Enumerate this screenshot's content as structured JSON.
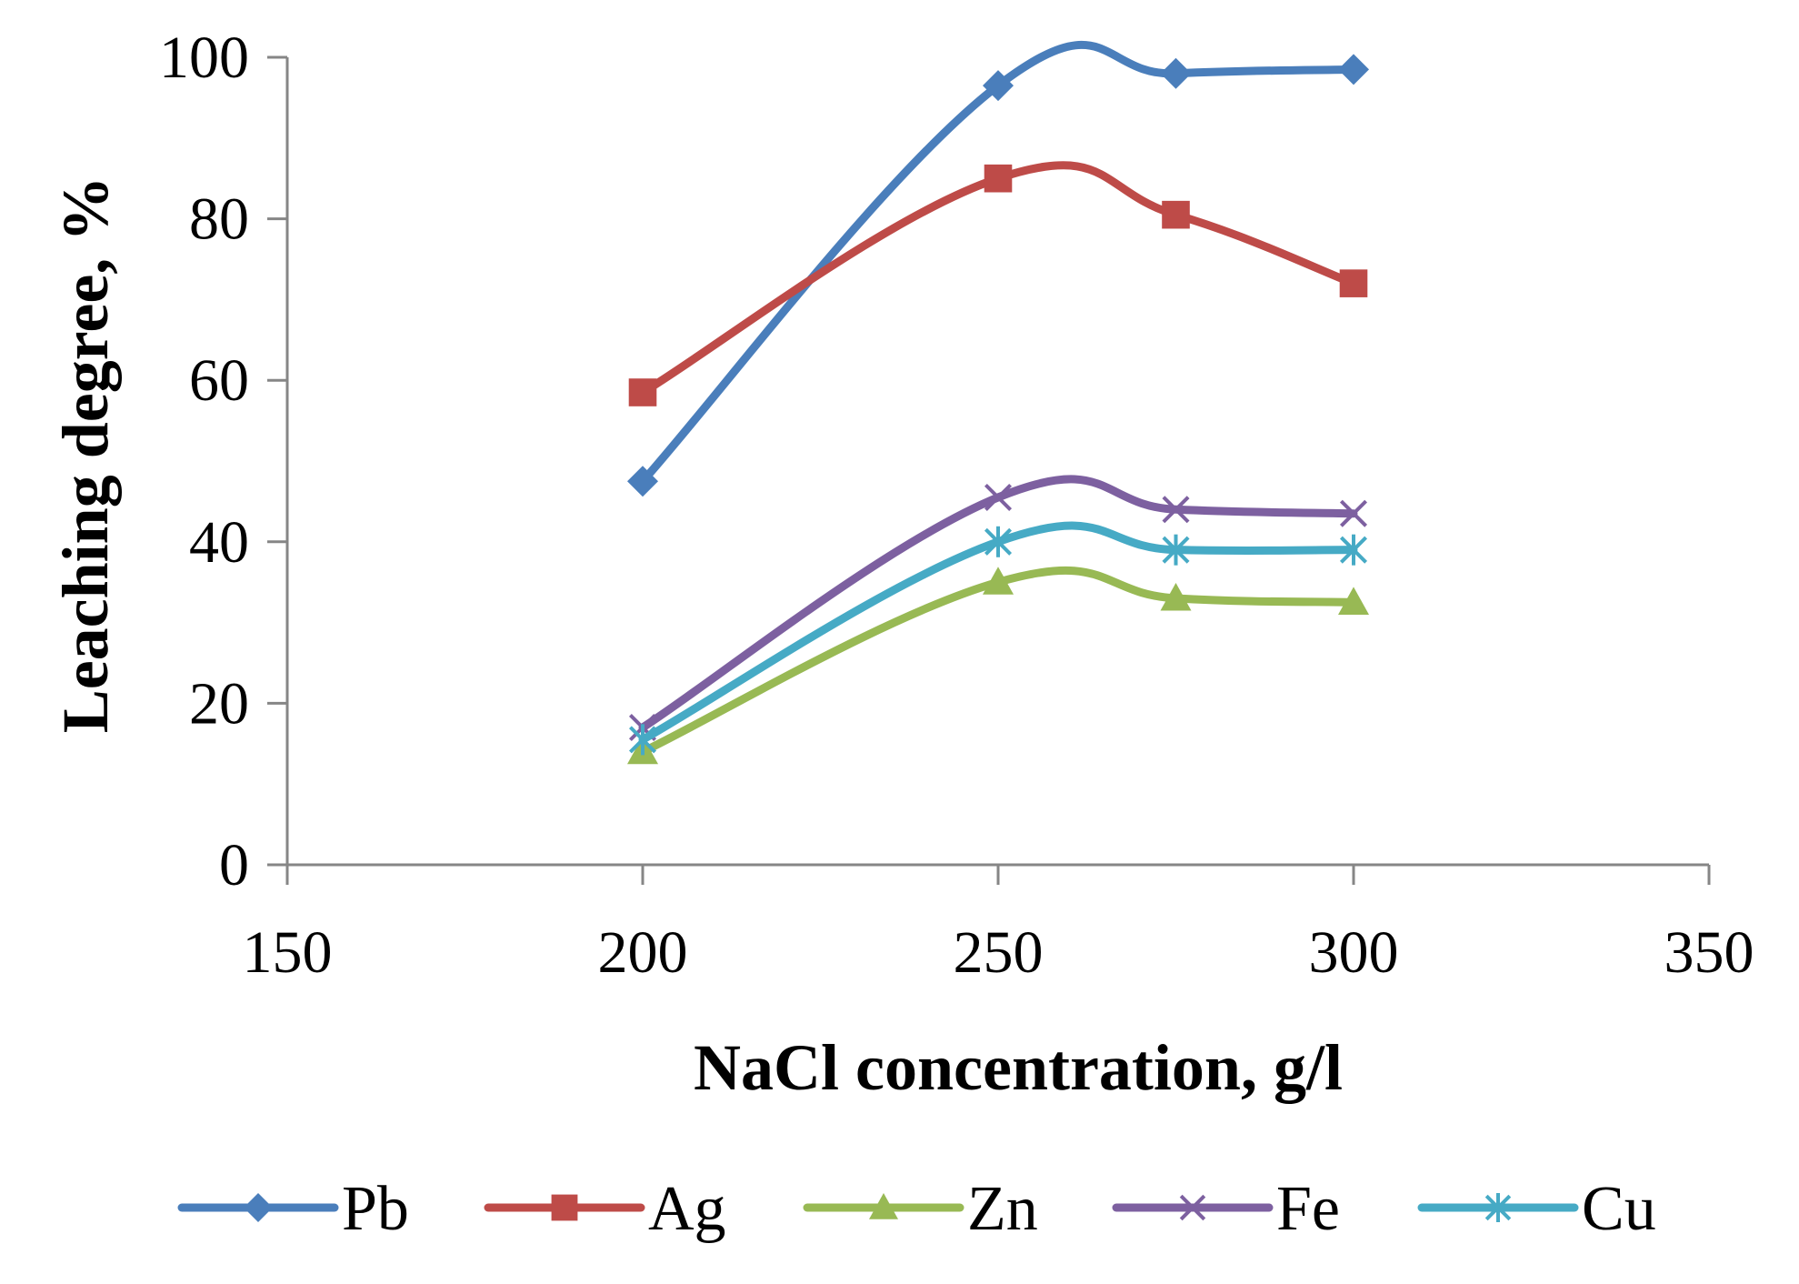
{
  "chart_data": {
    "type": "line",
    "title": "",
    "xlabel": "NaCl concentration, g/l",
    "ylabel": "Leaching degree, %",
    "xlim": [
      150,
      350
    ],
    "ylim": [
      0,
      100
    ],
    "x_ticks": [
      150,
      200,
      250,
      300,
      350
    ],
    "y_ticks": [
      0,
      20,
      40,
      60,
      80,
      100
    ],
    "x_tick_labels": [
      "150",
      "200",
      "250",
      "300",
      "350"
    ],
    "y_tick_labels": [
      "0",
      "20",
      "40",
      "60",
      "80",
      "100"
    ],
    "grid": false,
    "smooth": true,
    "legend_position": "bottom",
    "x": [
      200,
      250,
      275,
      300
    ],
    "series": [
      {
        "name": "Pb",
        "values": [
          47.5,
          96.5,
          98.0,
          98.5
        ],
        "color": "#4a7ebb",
        "marker": "diamond-icon"
      },
      {
        "name": "Ag",
        "values": [
          58.5,
          85.0,
          80.5,
          72.0
        ],
        "color": "#be4b48",
        "marker": "square-icon"
      },
      {
        "name": "Zn",
        "values": [
          14.0,
          35.0,
          33.0,
          32.5
        ],
        "color": "#98b954",
        "marker": "triangle-icon"
      },
      {
        "name": "Fe",
        "values": [
          17.0,
          45.5,
          44.0,
          43.5
        ],
        "color": "#7d60a0",
        "marker": "x-icon"
      },
      {
        "name": "Cu",
        "values": [
          15.5,
          40.0,
          39.0,
          39.0
        ],
        "color": "#46aac5",
        "marker": "asterisk-icon"
      }
    ]
  }
}
